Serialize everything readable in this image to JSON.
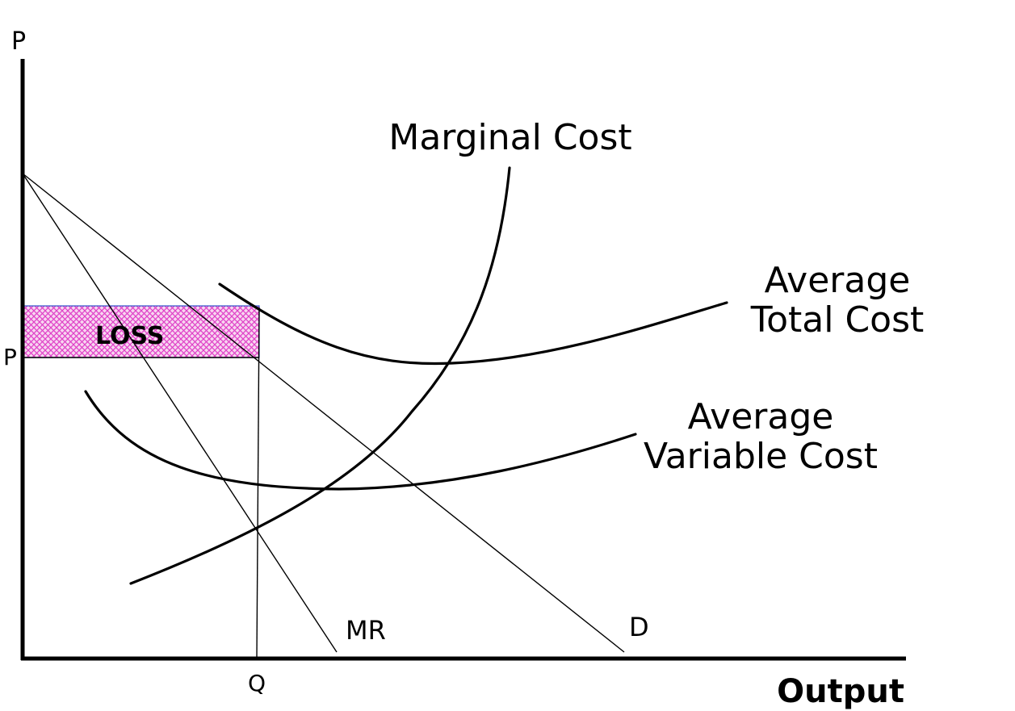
{
  "axes": {
    "y_label": "P",
    "x_label": "Output"
  },
  "labels": {
    "price": "P",
    "quantity": "Q",
    "loss_area": "LOSS",
    "marginal_cost": "Marginal Cost",
    "atc_line1": "Average",
    "atc_line2": "Total Cost",
    "avc_line1": "Average",
    "avc_line2": "Variable Cost",
    "marginal_revenue": "MR",
    "demand": "D"
  },
  "colors": {
    "loss_fill": "#e040c8",
    "loss_border": "#3355cc",
    "line": "#000000"
  }
}
